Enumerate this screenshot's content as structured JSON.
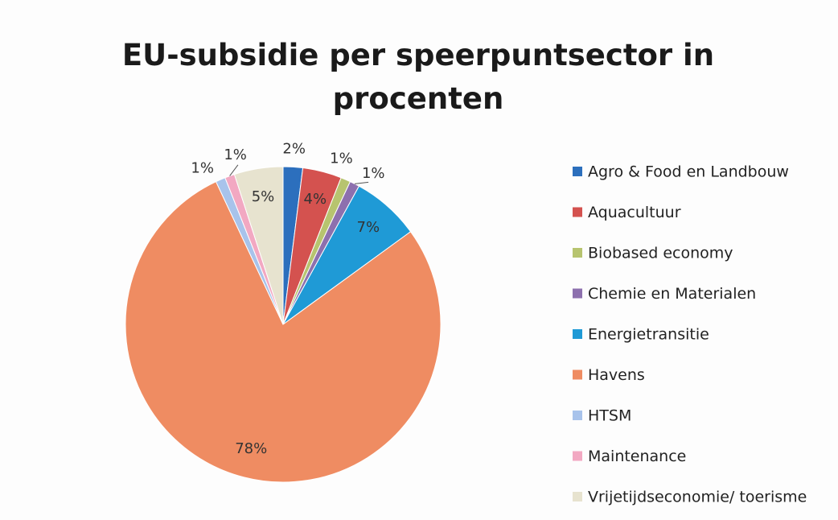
{
  "chart_data": {
    "type": "pie",
    "title": "EU-subsidie per speerpuntsector in procenten",
    "categories": [
      "Agro & Food en Landbouw",
      "Aquacultuur",
      "Biobased economy",
      "Chemie en Materialen",
      "Energietransitie",
      "Havens",
      "HTSM",
      "Maintenance",
      "Vrijetijdseconomie/ toerisme"
    ],
    "values": [
      2,
      4,
      1,
      1,
      7,
      78,
      1,
      1,
      5
    ],
    "value_labels": [
      "2%",
      "4%",
      "1%",
      "1%",
      "7%",
      "78%",
      "1%",
      "1%",
      "5%"
    ],
    "colors": [
      "#2c6fbd",
      "#d4524f",
      "#b7c46f",
      "#8d70ae",
      "#1f9ad6",
      "#ef8c62",
      "#a8c3eb",
      "#f2a8c2",
      "#e7e3cf"
    ],
    "legend": "right"
  }
}
